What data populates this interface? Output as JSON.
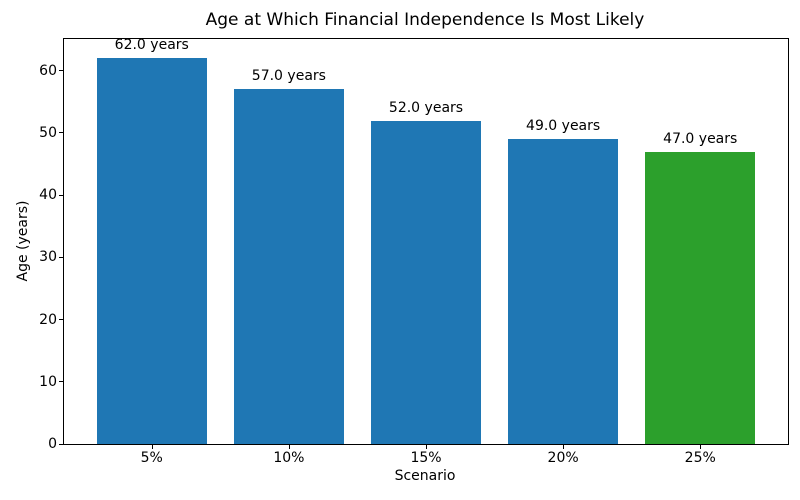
{
  "chart_data": {
    "type": "bar",
    "title": "Age at Which Financial Independence Is Most Likely",
    "xlabel": "Scenario",
    "ylabel": "Age (years)",
    "categories": [
      "5%",
      "10%",
      "15%",
      "20%",
      "25%"
    ],
    "values": [
      62.0,
      57.0,
      52.0,
      49.0,
      47.0
    ],
    "bar_labels": [
      "62.0 years",
      "57.0 years",
      "52.0 years",
      "49.0 years",
      "47.0 years"
    ],
    "bar_colors": [
      "#1f77b4",
      "#1f77b4",
      "#1f77b4",
      "#1f77b4",
      "#2ca02c"
    ],
    "default_color": "#1f77b4",
    "highlight_color": "#2ca02c",
    "ylim": [
      0,
      65.1
    ],
    "yticks": [
      0,
      10,
      20,
      30,
      40,
      50,
      60
    ],
    "grid": false,
    "legend_position": "none",
    "spine_color": "#000000",
    "background_color": "#ffffff"
  }
}
